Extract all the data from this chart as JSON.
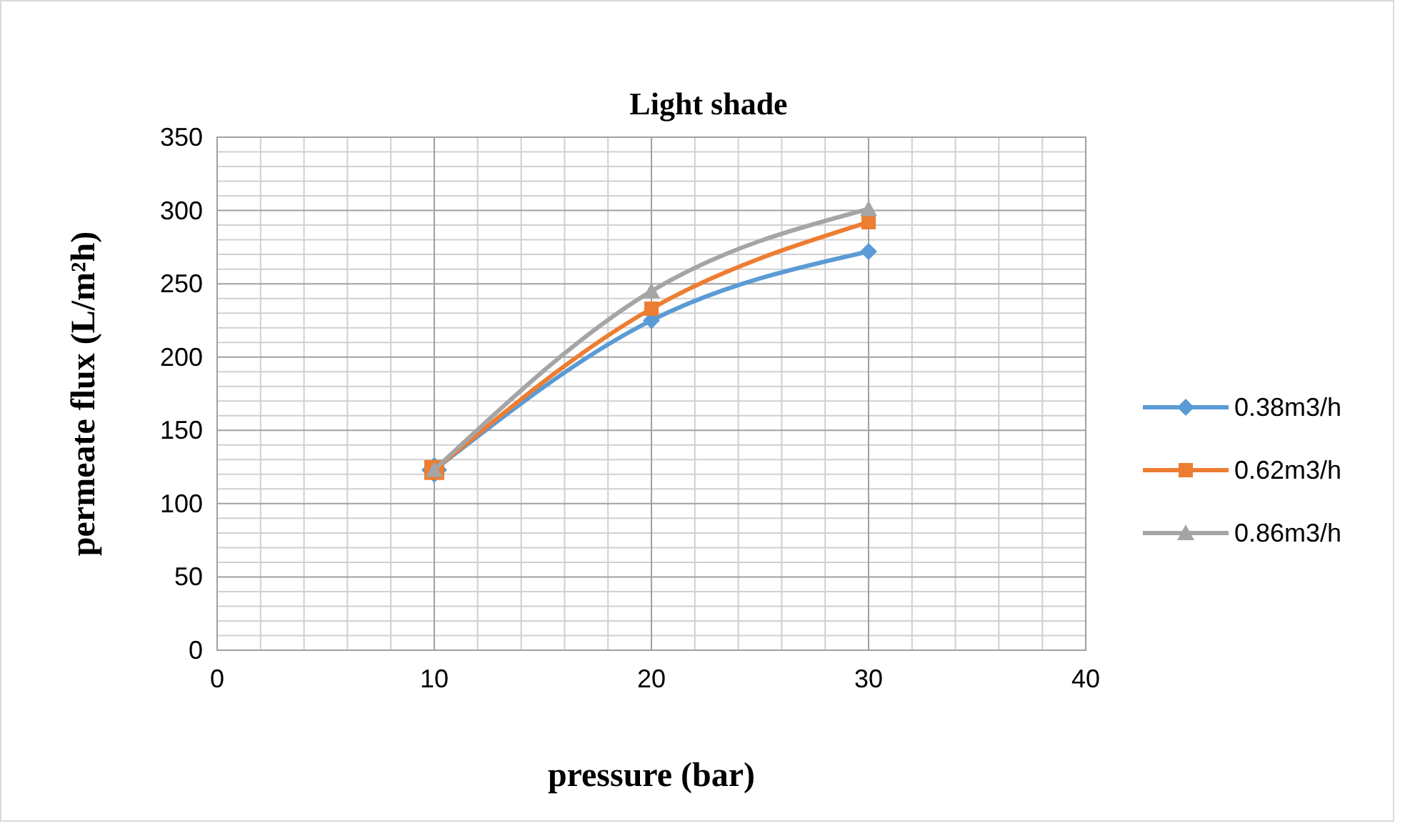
{
  "chart_data": {
    "type": "line",
    "title": "Light shade",
    "xlabel": "pressure (bar)",
    "ylabel": "permeate flux (L/m²h)",
    "x": [
      10,
      20,
      30
    ],
    "series": [
      {
        "name": "0.38m3/h",
        "color": "#5b9bd5",
        "values": [
          123,
          225,
          272
        ],
        "marker": "diamond"
      },
      {
        "name": "0.62m3/h",
        "color": "#ed7d31",
        "values": [
          123,
          233,
          292
        ],
        "marker": "square"
      },
      {
        "name": "0.86m3/h",
        "color": "#a5a5a5",
        "values": [
          123,
          245,
          301
        ],
        "marker": "triangle"
      }
    ],
    "xlim": [
      0,
      40
    ],
    "xticks": [
      0,
      10,
      20,
      30,
      40
    ],
    "ylim": [
      0,
      350
    ],
    "yticks": [
      0,
      50,
      100,
      150,
      200,
      250,
      300,
      350
    ],
    "grid": true,
    "legend": "right",
    "line_style": "solid"
  }
}
